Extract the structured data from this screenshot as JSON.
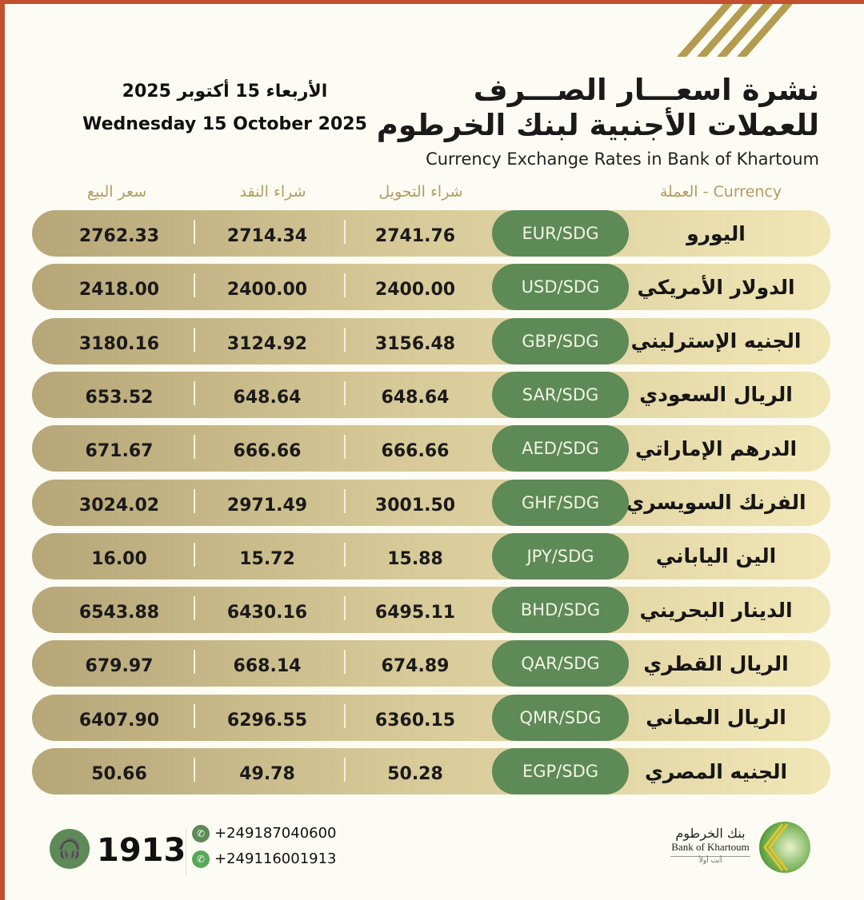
{
  "header": {
    "title_ar_line1": "نشرة اسعـــار الصـــرف",
    "title_ar_line2": "للعملات الأجنبية لبنك الخرطوم",
    "title_en": "Currency Exchange Rates in Bank of Khartoum",
    "date_ar": "الأربعاء 15 أكتوبر 2025",
    "date_en": "Wednesday 15 October 2025"
  },
  "columns": {
    "currency": "Currency - العملة",
    "transfer_buy": "شراء التحويل",
    "cash_buy": "شراء النقد",
    "sell": "سعر البيع"
  },
  "rows": [
    {
      "name": "اليورو",
      "code": "EUR/SDG",
      "transfer_buy": "2741.76",
      "cash_buy": "2714.34",
      "sell": "2762.33"
    },
    {
      "name": "الدولار الأمريكي",
      "code": "USD/SDG",
      "transfer_buy": "2400.00",
      "cash_buy": "2400.00",
      "sell": "2418.00"
    },
    {
      "name": "الجنيه الإسترليني",
      "code": "GBP/SDG",
      "transfer_buy": "3156.48",
      "cash_buy": "3124.92",
      "sell": "3180.16"
    },
    {
      "name": "الريال السعودي",
      "code": "SAR/SDG",
      "transfer_buy": "648.64",
      "cash_buy": "648.64",
      "sell": "653.52"
    },
    {
      "name": "الدرهم الإماراتي",
      "code": "AED/SDG",
      "transfer_buy": "666.66",
      "cash_buy": "666.66",
      "sell": "671.67"
    },
    {
      "name": "الفرنك السويسري",
      "code": "GHF/SDG",
      "transfer_buy": "3001.50",
      "cash_buy": "2971.49",
      "sell": "3024.02"
    },
    {
      "name": "الين الياباني",
      "code": "JPY/SDG",
      "transfer_buy": "15.88",
      "cash_buy": "15.72",
      "sell": "16.00"
    },
    {
      "name": "الدينار البحريني",
      "code": "BHD/SDG",
      "transfer_buy": "6495.11",
      "cash_buy": "6430.16",
      "sell": "6543.88"
    },
    {
      "name": "الريال القطري",
      "code": "QAR/SDG",
      "transfer_buy": "674.89",
      "cash_buy": "668.14",
      "sell": "679.97"
    },
    {
      "name": "الريال العماني",
      "code": "QMR/SDG",
      "transfer_buy": "6360.15",
      "cash_buy": "6296.55",
      "sell": "6407.90"
    },
    {
      "name": "الجنيه المصري",
      "code": "EGP/SDG",
      "transfer_buy": "50.28",
      "cash_buy": "49.78",
      "sell": "50.66"
    }
  ],
  "footer": {
    "hotline": "1913",
    "phone": "+249187040600",
    "whatsapp": "+249116001913",
    "logo_ar": "بنك الخرطوم",
    "logo_en": "Bank of Khartoum",
    "logo_tagline": "أنت أولاً",
    "icons": {
      "hotline": "headset-icon",
      "phone": "phone-icon",
      "whatsapp": "whatsapp-icon"
    }
  },
  "colors": {
    "accent_green": "#5d8a56",
    "gold": "#b29c60",
    "border": "#c3512f"
  }
}
